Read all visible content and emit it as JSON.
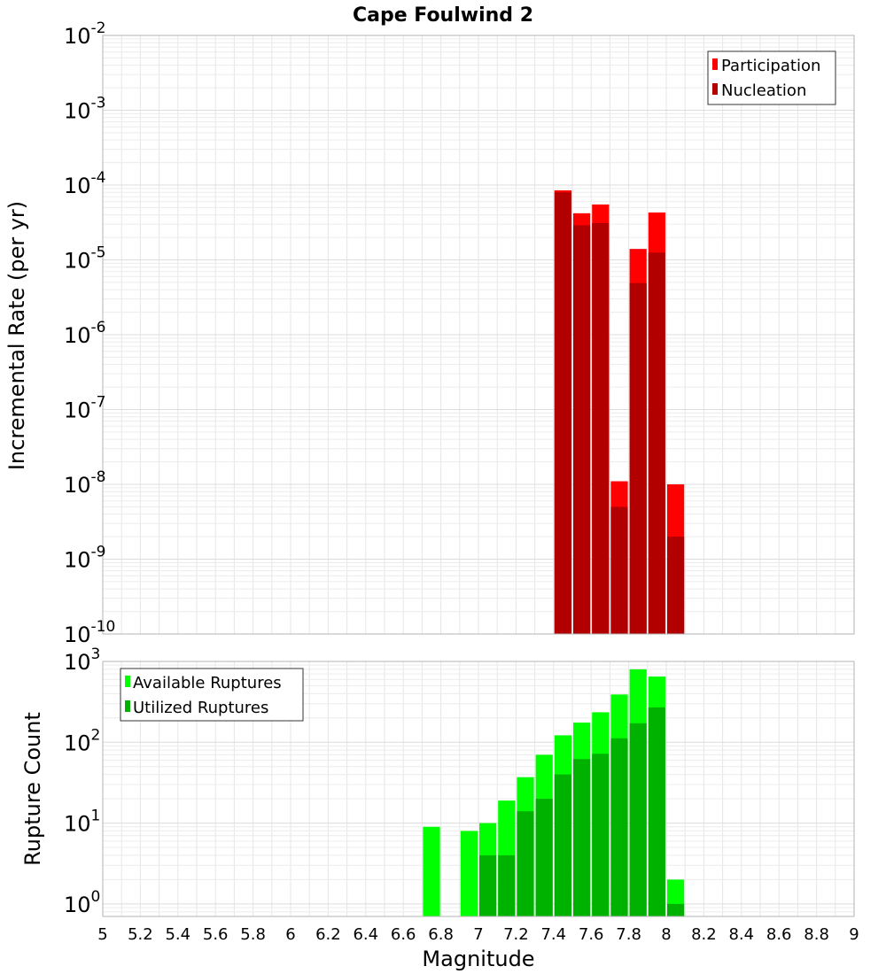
{
  "title": "Cape Foulwind 2",
  "xlabel": "Magnitude",
  "x_ticks": [
    "5",
    "5.2",
    "5.4",
    "5.6",
    "5.8",
    "6",
    "6.2",
    "6.4",
    "6.6",
    "6.8",
    "7",
    "7.2",
    "7.4",
    "7.6",
    "7.8",
    "8",
    "8.2",
    "8.4",
    "8.6",
    "8.8",
    "9"
  ],
  "top_y_ticks": [
    {
      "base": "10",
      "exp": "-2"
    },
    {
      "base": "10",
      "exp": "-3"
    },
    {
      "base": "10",
      "exp": "-4"
    },
    {
      "base": "10",
      "exp": "-5"
    },
    {
      "base": "10",
      "exp": "-6"
    },
    {
      "base": "10",
      "exp": "-7"
    },
    {
      "base": "10",
      "exp": "-8"
    },
    {
      "base": "10",
      "exp": "-9"
    },
    {
      "base": "10",
      "exp": "-10"
    }
  ],
  "bottom_y_ticks": [
    {
      "base": "10",
      "exp": "3"
    },
    {
      "base": "10",
      "exp": "2"
    },
    {
      "base": "10",
      "exp": "1"
    },
    {
      "base": "10",
      "exp": "0"
    }
  ],
  "colors": {
    "participation": "#ff0000",
    "nucleation": "#b20000",
    "available": "#00ff00",
    "utilized": "#00b200",
    "grid": "#e6e6e6",
    "frame": "#b3b3b3"
  },
  "chart_data": [
    {
      "type": "bar",
      "ylabel": "Incremental Rate (per yr)",
      "yscale": "log",
      "ylim": [
        1e-10,
        0.01
      ],
      "xlim": [
        5,
        9
      ],
      "grid": true,
      "legend_position": "top-right",
      "bar_width": 0.1,
      "x": [
        7.45,
        7.55,
        7.65,
        7.75,
        7.85,
        7.95,
        8.05
      ],
      "series": [
        {
          "name": "Participation",
          "values": [
            8.5e-05,
            4.2e-05,
            5.5e-05,
            1.1e-08,
            1.4e-05,
            4.3e-05,
            1e-08
          ]
        },
        {
          "name": "Nucleation",
          "values": [
            8e-05,
            2.9e-05,
            3.1e-05,
            5e-09,
            4.9e-06,
            1.25e-05,
            2e-09
          ]
        }
      ]
    },
    {
      "type": "bar",
      "ylabel": "Rupture Count",
      "yscale": "log",
      "ylim": [
        0.7,
        1000
      ],
      "xlim": [
        5,
        9
      ],
      "grid": true,
      "legend_position": "top-left",
      "bar_width": 0.1,
      "x": [
        6.75,
        6.95,
        7.05,
        7.15,
        7.25,
        7.35,
        7.45,
        7.55,
        7.65,
        7.75,
        7.85,
        7.95,
        8.05
      ],
      "series": [
        {
          "name": "Available Ruptures",
          "values": [
            9,
            8,
            10,
            19,
            37,
            70,
            122,
            175,
            235,
            390,
            800,
            650,
            2
          ]
        },
        {
          "name": "Utilized Ruptures",
          "values": [
            0,
            0,
            4,
            4,
            14,
            20,
            40,
            62,
            72,
            112,
            172,
            270,
            1
          ]
        }
      ]
    }
  ]
}
